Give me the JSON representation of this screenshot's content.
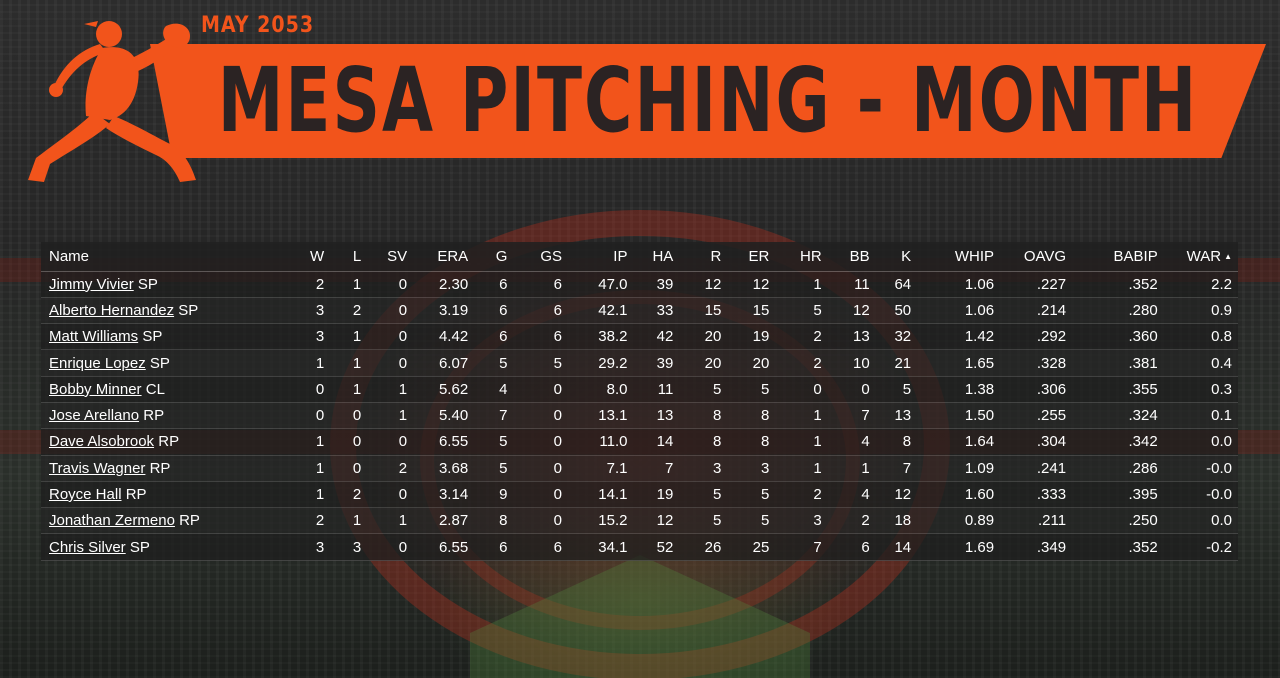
{
  "header": {
    "month_label": "MAY  2053",
    "title": "MESA PITCHING - MONTH"
  },
  "colors": {
    "accent": "#f2541b",
    "title_text": "#2b2323",
    "table_text": "#ffffff"
  },
  "icons": {
    "logo": "pitcher-silhouette-icon",
    "sort": "sort-ascending-arrow-icon"
  },
  "table": {
    "columns": [
      "Name",
      "W",
      "L",
      "SV",
      "ERA",
      "G",
      "GS",
      "IP",
      "HA",
      "R",
      "ER",
      "HR",
      "BB",
      "K",
      "WHIP",
      "OAVG",
      "BABIP",
      "WAR"
    ],
    "sort_arrow": "▲",
    "rows": [
      {
        "name": "Jimmy Vivier",
        "pos": "SP",
        "W": "2",
        "L": "1",
        "SV": "0",
        "ERA": "2.30",
        "G": "6",
        "GS": "6",
        "IP": "47.0",
        "HA": "39",
        "R": "12",
        "ER": "12",
        "HR": "1",
        "BB": "11",
        "K": "64",
        "WHIP": "1.06",
        "OAVG": ".227",
        "BABIP": ".352",
        "WAR": "2.2"
      },
      {
        "name": "Alberto Hernandez",
        "pos": "SP",
        "W": "3",
        "L": "2",
        "SV": "0",
        "ERA": "3.19",
        "G": "6",
        "GS": "6",
        "IP": "42.1",
        "HA": "33",
        "R": "15",
        "ER": "15",
        "HR": "5",
        "BB": "12",
        "K": "50",
        "WHIP": "1.06",
        "OAVG": ".214",
        "BABIP": ".280",
        "WAR": "0.9"
      },
      {
        "name": "Matt Williams",
        "pos": "SP",
        "W": "3",
        "L": "1",
        "SV": "0",
        "ERA": "4.42",
        "G": "6",
        "GS": "6",
        "IP": "38.2",
        "HA": "42",
        "R": "20",
        "ER": "19",
        "HR": "2",
        "BB": "13",
        "K": "32",
        "WHIP": "1.42",
        "OAVG": ".292",
        "BABIP": ".360",
        "WAR": "0.8"
      },
      {
        "name": "Enrique Lopez",
        "pos": "SP",
        "W": "1",
        "L": "1",
        "SV": "0",
        "ERA": "6.07",
        "G": "5",
        "GS": "5",
        "IP": "29.2",
        "HA": "39",
        "R": "20",
        "ER": "20",
        "HR": "2",
        "BB": "10",
        "K": "21",
        "WHIP": "1.65",
        "OAVG": ".328",
        "BABIP": ".381",
        "WAR": "0.4"
      },
      {
        "name": "Bobby Minner",
        "pos": "CL",
        "W": "0",
        "L": "1",
        "SV": "1",
        "ERA": "5.62",
        "G": "4",
        "GS": "0",
        "IP": "8.0",
        "HA": "11",
        "R": "5",
        "ER": "5",
        "HR": "0",
        "BB": "0",
        "K": "5",
        "WHIP": "1.38",
        "OAVG": ".306",
        "BABIP": ".355",
        "WAR": "0.3"
      },
      {
        "name": "Jose Arellano",
        "pos": "RP",
        "W": "0",
        "L": "0",
        "SV": "1",
        "ERA": "5.40",
        "G": "7",
        "GS": "0",
        "IP": "13.1",
        "HA": "13",
        "R": "8",
        "ER": "8",
        "HR": "1",
        "BB": "7",
        "K": "13",
        "WHIP": "1.50",
        "OAVG": ".255",
        "BABIP": ".324",
        "WAR": "0.1"
      },
      {
        "name": "Dave Alsobrook",
        "pos": "RP",
        "W": "1",
        "L": "0",
        "SV": "0",
        "ERA": "6.55",
        "G": "5",
        "GS": "0",
        "IP": "11.0",
        "HA": "14",
        "R": "8",
        "ER": "8",
        "HR": "1",
        "BB": "4",
        "K": "8",
        "WHIP": "1.64",
        "OAVG": ".304",
        "BABIP": ".342",
        "WAR": "0.0"
      },
      {
        "name": "Travis Wagner",
        "pos": "RP",
        "W": "1",
        "L": "0",
        "SV": "2",
        "ERA": "3.68",
        "G": "5",
        "GS": "0",
        "IP": "7.1",
        "HA": "7",
        "R": "3",
        "ER": "3",
        "HR": "1",
        "BB": "1",
        "K": "7",
        "WHIP": "1.09",
        "OAVG": ".241",
        "BABIP": ".286",
        "WAR": "-0.0"
      },
      {
        "name": "Royce Hall",
        "pos": "RP",
        "W": "1",
        "L": "2",
        "SV": "0",
        "ERA": "3.14",
        "G": "9",
        "GS": "0",
        "IP": "14.1",
        "HA": "19",
        "R": "5",
        "ER": "5",
        "HR": "2",
        "BB": "4",
        "K": "12",
        "WHIP": "1.60",
        "OAVG": ".333",
        "BABIP": ".395",
        "WAR": "-0.0"
      },
      {
        "name": "Jonathan Zermeno",
        "pos": "RP",
        "W": "2",
        "L": "1",
        "SV": "1",
        "ERA": "2.87",
        "G": "8",
        "GS": "0",
        "IP": "15.2",
        "HA": "12",
        "R": "5",
        "ER": "5",
        "HR": "3",
        "BB": "2",
        "K": "18",
        "WHIP": "0.89",
        "OAVG": ".211",
        "BABIP": ".250",
        "WAR": "0.0"
      },
      {
        "name": "Chris Silver",
        "pos": "SP",
        "W": "3",
        "L": "3",
        "SV": "0",
        "ERA": "6.55",
        "G": "6",
        "GS": "6",
        "IP": "34.1",
        "HA": "52",
        "R": "26",
        "ER": "25",
        "HR": "7",
        "BB": "6",
        "K": "14",
        "WHIP": "1.69",
        "OAVG": ".349",
        "BABIP": ".352",
        "WAR": "-0.2"
      }
    ]
  }
}
